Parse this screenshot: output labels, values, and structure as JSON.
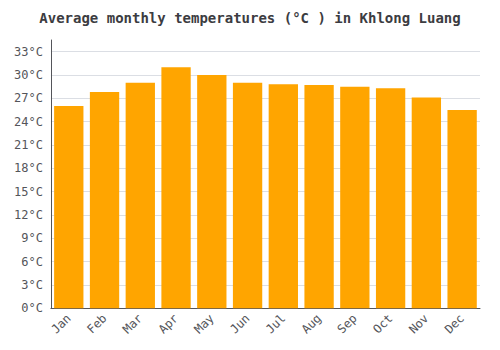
{
  "chart_data": {
    "type": "bar",
    "title": "Average monthly temperatures (°C ) in Khlong Luang",
    "categories": [
      "Jan",
      "Feb",
      "Mar",
      "Apr",
      "May",
      "Jun",
      "Jul",
      "Aug",
      "Sep",
      "Oct",
      "Nov",
      "Dec"
    ],
    "values": [
      26.0,
      27.8,
      29.0,
      31.0,
      30.0,
      29.0,
      28.8,
      28.7,
      28.5,
      28.3,
      27.1,
      25.5
    ],
    "color": "#FFA500",
    "ylim": [
      0,
      34.5
    ],
    "yticks": [
      {
        "value": 0,
        "label": "0°C"
      },
      {
        "value": 3,
        "label": "3°C"
      },
      {
        "value": 6,
        "label": "6°C"
      },
      {
        "value": 9,
        "label": "9°C"
      },
      {
        "value": 12,
        "label": "12°C"
      },
      {
        "value": 15,
        "label": "15°C"
      },
      {
        "value": 18,
        "label": "18°C"
      },
      {
        "value": 21,
        "label": "21°C"
      },
      {
        "value": 24,
        "label": "24°C"
      },
      {
        "value": 27,
        "label": "27°C"
      },
      {
        "value": 30,
        "label": "30°C"
      },
      {
        "value": 33,
        "label": "33°C"
      }
    ],
    "grid": true
  }
}
